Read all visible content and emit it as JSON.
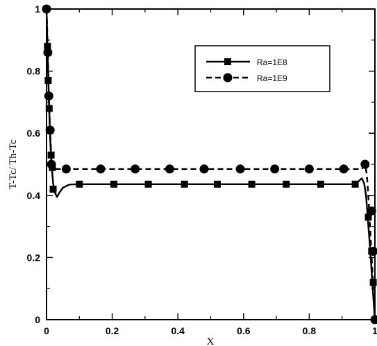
{
  "chart_data": {
    "type": "line",
    "xlabel": "X",
    "ylabel": "T-Tc/ Th-Tc",
    "xlim": [
      0,
      1
    ],
    "ylim": [
      0,
      1
    ],
    "x_ticks": [
      "0",
      "0.2",
      "0.4",
      "0.6",
      "0.8",
      "1"
    ],
    "y_ticks": [
      "0",
      "0.2",
      "0.4",
      "0.6",
      "0.8",
      "1"
    ],
    "legend_position": "top-right",
    "series": [
      {
        "name": "Ra=1E8",
        "line_style": "solid",
        "marker": "square",
        "color": "#000000",
        "line": [
          [
            0.0,
            1.0
          ],
          [
            0.003,
            0.87
          ],
          [
            0.006,
            0.76
          ],
          [
            0.009,
            0.65
          ],
          [
            0.012,
            0.56
          ],
          [
            0.016,
            0.49
          ],
          [
            0.02,
            0.44
          ],
          [
            0.025,
            0.41
          ],
          [
            0.032,
            0.395
          ],
          [
            0.04,
            0.41
          ],
          [
            0.05,
            0.425
          ],
          [
            0.07,
            0.435
          ],
          [
            0.1,
            0.436
          ],
          [
            0.3,
            0.436
          ],
          [
            0.5,
            0.436
          ],
          [
            0.7,
            0.436
          ],
          [
            0.93,
            0.436
          ],
          [
            0.95,
            0.445
          ],
          [
            0.96,
            0.455
          ],
          [
            0.967,
            0.44
          ],
          [
            0.973,
            0.4
          ],
          [
            0.978,
            0.33
          ],
          [
            0.983,
            0.26
          ],
          [
            0.988,
            0.19
          ],
          [
            0.992,
            0.12
          ],
          [
            0.996,
            0.06
          ],
          [
            1.0,
            0.0
          ]
        ],
        "markers": [
          [
            0.0,
            1.0
          ],
          [
            0.003,
            0.88
          ],
          [
            0.005,
            0.77
          ],
          [
            0.008,
            0.68
          ],
          [
            0.011,
            0.61
          ],
          [
            0.014,
            0.53
          ],
          [
            0.018,
            0.49
          ],
          [
            0.02,
            0.42
          ],
          [
            0.1,
            0.436
          ],
          [
            0.205,
            0.436
          ],
          [
            0.31,
            0.436
          ],
          [
            0.42,
            0.436
          ],
          [
            0.52,
            0.436
          ],
          [
            0.625,
            0.436
          ],
          [
            0.73,
            0.436
          ],
          [
            0.835,
            0.436
          ],
          [
            0.94,
            0.436
          ],
          [
            0.98,
            0.33
          ],
          [
            0.99,
            0.22
          ],
          [
            0.995,
            0.12
          ]
        ]
      },
      {
        "name": "Ra=1E9",
        "line_style": "dashed",
        "marker": "circle",
        "color": "#000000",
        "line": [
          [
            0.0,
            1.0
          ],
          [
            0.004,
            0.86
          ],
          [
            0.007,
            0.72
          ],
          [
            0.011,
            0.6
          ],
          [
            0.015,
            0.52
          ],
          [
            0.02,
            0.485
          ],
          [
            0.06,
            0.485
          ],
          [
            0.5,
            0.485
          ],
          [
            0.96,
            0.485
          ],
          [
            0.97,
            0.5
          ],
          [
            0.975,
            0.47
          ],
          [
            0.98,
            0.4
          ],
          [
            0.985,
            0.3
          ],
          [
            0.99,
            0.2
          ],
          [
            0.995,
            0.1
          ],
          [
            1.0,
            0.0
          ]
        ],
        "markers": [
          [
            0.0,
            1.0
          ],
          [
            0.004,
            0.86
          ],
          [
            0.007,
            0.72
          ],
          [
            0.011,
            0.61
          ],
          [
            0.015,
            0.5
          ],
          [
            0.06,
            0.485
          ],
          [
            0.165,
            0.485
          ],
          [
            0.27,
            0.485
          ],
          [
            0.375,
            0.485
          ],
          [
            0.48,
            0.485
          ],
          [
            0.59,
            0.485
          ],
          [
            0.695,
            0.485
          ],
          [
            0.8,
            0.485
          ],
          [
            0.905,
            0.485
          ],
          [
            0.97,
            0.5
          ],
          [
            0.99,
            0.35
          ],
          [
            0.995,
            0.22
          ],
          [
            1.0,
            0.0
          ]
        ]
      }
    ]
  }
}
